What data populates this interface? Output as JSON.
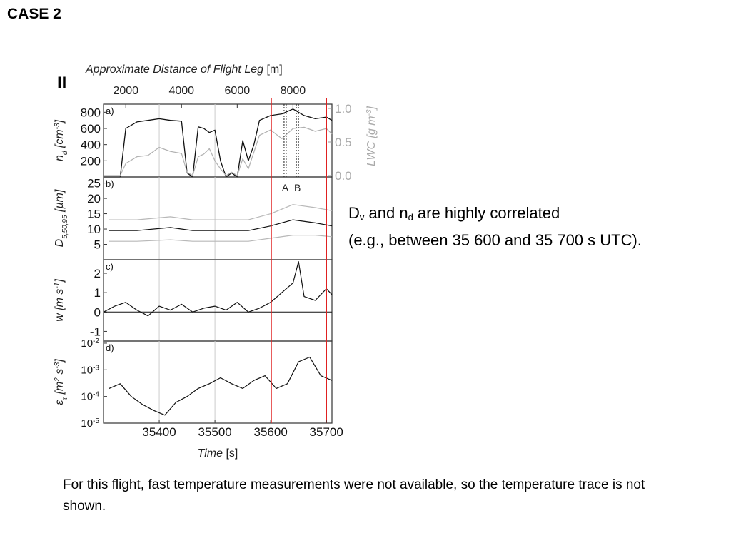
{
  "slide": {
    "title": "CASE 2",
    "note_right_line1_parts": [
      "D",
      "v",
      " and n",
      "d",
      " are highly correlated"
    ],
    "note_right_line2": "(e.g., between 35 600 and 35 700 s UTC).",
    "note_bottom": "For this flight, fast temperature measurements were not available, so the temperature trace is not shown."
  },
  "chart_data": {
    "type": "line",
    "figure_label": "II",
    "top_axis": {
      "label": "Approximate Distance of Flight Leg",
      "unit": "[m]",
      "ticks": [
        2000,
        4000,
        6000,
        8000
      ],
      "tick_times": [
        35340,
        35440,
        35540,
        35640
      ]
    },
    "x": {
      "label": "Time",
      "unit": "[s]",
      "range": [
        35300,
        35710
      ],
      "ticks": [
        35400,
        35500,
        35600,
        35700
      ],
      "gridlines": [
        35400,
        35500
      ]
    },
    "highlight_lines": {
      "color": "#e02020",
      "x": [
        35601,
        35700
      ]
    },
    "marker_lines": {
      "labels": [
        "A",
        "B"
      ],
      "x": [
        35626,
        35648
      ]
    },
    "panels": [
      {
        "id": "a",
        "label": "a)",
        "ylabel_left": "n_d [cm^-3]",
        "ylabel_right": "LWC [g m^-3]",
        "ylim": [
          0,
          900
        ],
        "yticks": [
          200,
          400,
          600,
          800
        ],
        "y2lim": [
          0,
          1.0
        ],
        "y2ticks": [
          0.0,
          0.5,
          1.0
        ],
        "series": [
          {
            "color": "#111111",
            "axis": "left",
            "x": [
              35300,
              35330,
              35340,
              35360,
              35380,
              35400,
              35420,
              35440,
              35450,
              35460,
              35470,
              35480,
              35490,
              35500,
              35510,
              35520,
              35530,
              35540,
              35550,
              35560,
              35570,
              35580,
              35600,
              35620,
              35640,
              35660,
              35680,
              35700,
              35710
            ],
            "y": [
              0,
              0,
              600,
              680,
              700,
              720,
              700,
              690,
              50,
              0,
              620,
              600,
              550,
              580,
              200,
              0,
              50,
              0,
              450,
              200,
              400,
              700,
              760,
              780,
              840,
              760,
              720,
              740,
              700
            ]
          },
          {
            "color": "#b0b0b0",
            "axis": "right",
            "x": [
              35300,
              35330,
              35340,
              35360,
              35380,
              35400,
              35420,
              35440,
              35450,
              35460,
              35470,
              35480,
              35490,
              35500,
              35510,
              35520,
              35530,
              35540,
              35550,
              35560,
              35570,
              35580,
              35600,
              35620,
              35640,
              35660,
              35680,
              35700,
              35710
            ],
            "y": [
              0,
              0,
              0.18,
              0.28,
              0.3,
              0.42,
              0.36,
              0.33,
              0.05,
              0.0,
              0.28,
              0.32,
              0.4,
              0.22,
              0.1,
              0.0,
              0.05,
              0.0,
              0.25,
              0.1,
              0.35,
              0.6,
              0.68,
              0.55,
              0.7,
              0.72,
              0.66,
              0.7,
              0.62
            ]
          }
        ]
      },
      {
        "id": "b",
        "label": "b)",
        "ylabel_left": "D_5,50,95 [µm]",
        "ylim": [
          0,
          27
        ],
        "yticks": [
          5,
          10,
          15,
          20,
          25
        ],
        "series": [
          {
            "color": "#b8b8b8",
            "name": "",
            "x": [
              35310,
              35360,
              35420,
              35460,
              35500,
              35560,
              35600,
              35640,
              35680,
              35710
            ],
            "y": [
              13,
              13,
              14,
              13,
              13,
              13,
              15,
              18,
              17,
              16
            ]
          },
          {
            "color": "#111111",
            "name": "",
            "x": [
              35310,
              35360,
              35420,
              35460,
              35500,
              35560,
              35600,
              35640,
              35680,
              35710
            ],
            "y": [
              9.5,
              9.5,
              10.5,
              9.5,
              9.5,
              9.5,
              11,
              13,
              12,
              11
            ]
          },
          {
            "color": "#b8b8b8",
            "name": "",
            "x": [
              35310,
              35360,
              35420,
              35460,
              35500,
              35560,
              35600,
              35640,
              35680,
              35710
            ],
            "y": [
              6,
              6,
              6.5,
              6,
              6,
              6,
              7,
              8,
              8,
              7.5
            ]
          }
        ]
      },
      {
        "id": "c",
        "label": "c)",
        "ylabel_left": "w [m s^-1]",
        "ylim": [
          -1.5,
          2.7
        ],
        "yticks": [
          -1,
          0,
          1,
          2
        ],
        "zero_line": true,
        "series": [
          {
            "color": "#111111",
            "x": [
              35300,
              35320,
              35340,
              35360,
              35380,
              35400,
              35420,
              35440,
              35460,
              35480,
              35500,
              35520,
              35540,
              35560,
              35580,
              35600,
              35620,
              35640,
              35650,
              35660,
              35680,
              35700,
              35710
            ],
            "y": [
              0.0,
              0.3,
              0.5,
              0.1,
              -0.2,
              0.3,
              0.1,
              0.4,
              0.0,
              0.2,
              0.3,
              0.1,
              0.5,
              0.0,
              0.2,
              0.5,
              1.0,
              1.5,
              2.6,
              0.8,
              0.6,
              1.2,
              0.9
            ]
          }
        ]
      },
      {
        "id": "d",
        "label": "d)",
        "ylabel_left": "ε_τ [m^2 s^-3]",
        "yscale": "log",
        "ylim": [
          1e-05,
          0.012
        ],
        "yticks_exp": [
          -5,
          -4,
          -3,
          -2
        ],
        "series": [
          {
            "color": "#111111",
            "x": [
              35310,
              35330,
              35350,
              35370,
              35390,
              35410,
              35430,
              35450,
              35470,
              35490,
              35510,
              35530,
              35550,
              35570,
              35590,
              35610,
              35630,
              35650,
              35670,
              35690,
              35710
            ],
            "y": [
              0.0002,
              0.0003,
              0.0001,
              5e-05,
              3e-05,
              2e-05,
              6e-05,
              0.0001,
              0.0002,
              0.0003,
              0.0005,
              0.0003,
              0.0002,
              0.0004,
              0.0006,
              0.0002,
              0.0003,
              0.002,
              0.003,
              0.0006,
              0.0004
            ]
          }
        ]
      }
    ]
  }
}
